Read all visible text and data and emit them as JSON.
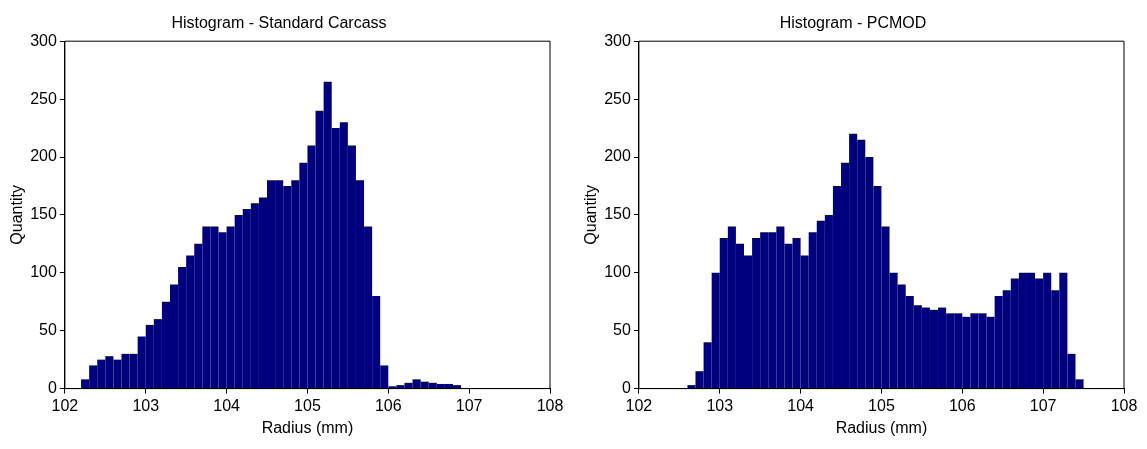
{
  "chart_data": [
    {
      "type": "histogram",
      "title": "Histogram - Standard Carcass",
      "xlabel": "Radius (mm)",
      "ylabel": "Quantity",
      "color": "#00007f",
      "bins": [
        102.2,
        102.3,
        102.4,
        102.5,
        102.6,
        102.7,
        102.8,
        102.9,
        103.0,
        103.1,
        103.2,
        103.3,
        103.4,
        103.5,
        103.6,
        103.7,
        103.8,
        103.9,
        104.0,
        104.1,
        104.2,
        104.3,
        104.4,
        104.5,
        104.6,
        104.7,
        104.8,
        104.9,
        105.0,
        105.1,
        105.2,
        105.3,
        105.4,
        105.5,
        105.6,
        105.7,
        105.8,
        105.9,
        106.0,
        106.1,
        106.2,
        106.3,
        106.4,
        106.5,
        106.6,
        106.7,
        106.8,
        106.9
      ],
      "values": [
        8,
        20,
        25,
        28,
        25,
        30,
        30,
        45,
        55,
        60,
        75,
        90,
        105,
        115,
        125,
        140,
        140,
        135,
        140,
        150,
        155,
        160,
        165,
        180,
        180,
        175,
        180,
        195,
        210,
        240,
        265,
        225,
        230,
        210,
        180,
        140,
        80,
        20,
        2,
        3,
        5,
        8,
        6,
        5,
        4,
        4,
        3
      ],
      "xlim": [
        102,
        108
      ],
      "xticks": [
        102,
        103,
        104,
        105,
        106,
        107,
        108
      ],
      "ylim": [
        0,
        300
      ],
      "yticks": [
        0,
        50,
        100,
        150,
        200,
        250,
        300
      ],
      "grid": false
    },
    {
      "type": "histogram",
      "title": "Histogram - PCMOD",
      "xlabel": "Radius (mm)",
      "ylabel": "Quantity",
      "color": "#00007f",
      "bins": [
        102.6,
        102.7,
        102.8,
        102.9,
        103.0,
        103.1,
        103.2,
        103.3,
        103.4,
        103.5,
        103.6,
        103.7,
        103.8,
        103.9,
        104.0,
        104.1,
        104.2,
        104.3,
        104.4,
        104.5,
        104.6,
        104.7,
        104.8,
        104.9,
        105.0,
        105.1,
        105.2,
        105.3,
        105.4,
        105.5,
        105.6,
        105.7,
        105.8,
        105.9,
        106.0,
        106.1,
        106.2,
        106.3,
        106.4,
        106.5,
        106.6,
        106.7,
        106.8,
        106.9,
        107.0,
        107.1,
        107.2,
        107.3,
        107.4,
        107.5
      ],
      "values": [
        3,
        15,
        40,
        100,
        130,
        140,
        125,
        115,
        130,
        135,
        135,
        140,
        125,
        130,
        115,
        135,
        145,
        150,
        175,
        195,
        220,
        215,
        200,
        175,
        140,
        100,
        90,
        80,
        72,
        70,
        68,
        70,
        65,
        65,
        62,
        65,
        65,
        62,
        80,
        85,
        95,
        100,
        100,
        95,
        100,
        85,
        100,
        30,
        8
      ],
      "xlim": [
        102,
        108
      ],
      "xticks": [
        102,
        103,
        104,
        105,
        106,
        107,
        108
      ],
      "ylim": [
        0,
        300
      ],
      "yticks": [
        0,
        50,
        100,
        150,
        200,
        250,
        300
      ],
      "grid": false
    }
  ]
}
